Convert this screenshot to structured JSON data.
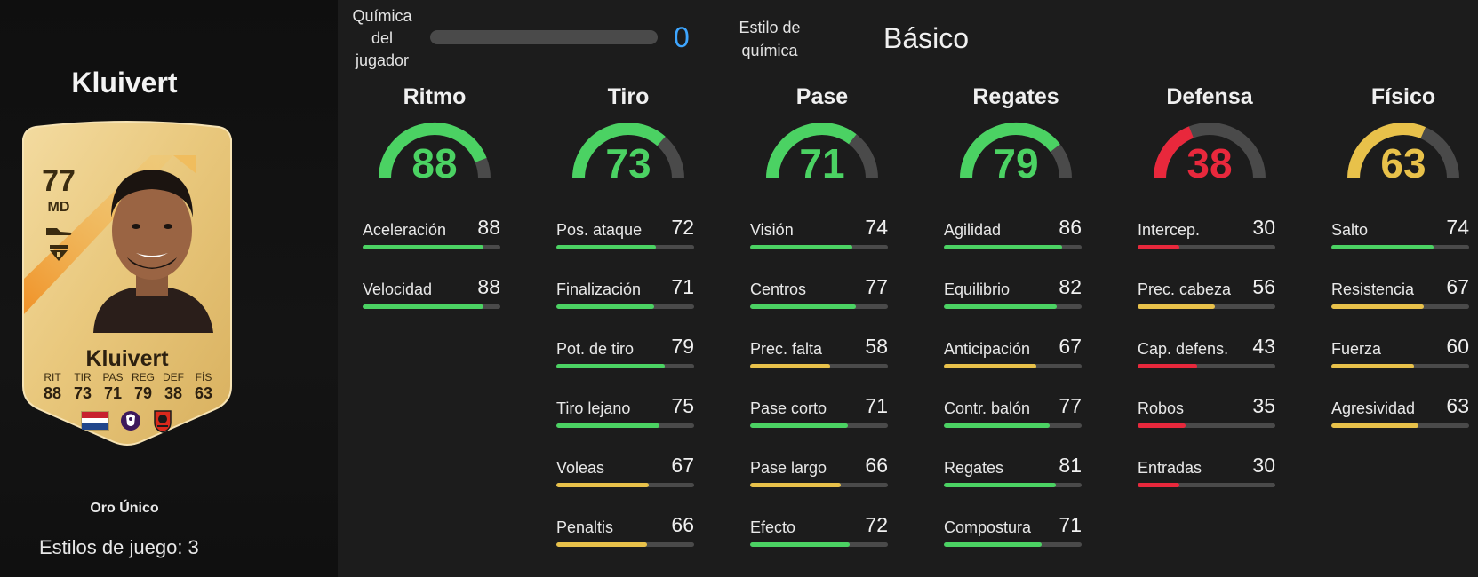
{
  "player": {
    "name": "Kluivert",
    "card_name": "Kluivert",
    "rating": "77",
    "position": "MD",
    "variant": "Oro Único",
    "playstyles": "Estilos de juego: 3",
    "card_stats": [
      {
        "label": "RIT",
        "value": "88"
      },
      {
        "label": "TIR",
        "value": "73"
      },
      {
        "label": "PAS",
        "value": "71"
      },
      {
        "label": "REG",
        "value": "79"
      },
      {
        "label": "DEF",
        "value": "38"
      },
      {
        "label": "FÍS",
        "value": "63"
      }
    ]
  },
  "header": {
    "chemistry_label": "Química\ndel\njugador",
    "chemistry_value": "0",
    "style_label": "Estilo de\nquímica",
    "style_value": "Básico"
  },
  "colors": {
    "green": "#4bd263",
    "yellow": "#e8c14a",
    "red": "#e8283c",
    "chem_blue": "#3ea6ff",
    "track": "#4a4a4a"
  },
  "categories": [
    {
      "title": "Ritmo",
      "value": 88,
      "attributes": [
        {
          "name": "Aceleración",
          "value": 88
        },
        {
          "name": "Velocidad",
          "value": 88
        }
      ]
    },
    {
      "title": "Tiro",
      "value": 73,
      "attributes": [
        {
          "name": "Pos. ataque",
          "value": 72
        },
        {
          "name": "Finalización",
          "value": 71
        },
        {
          "name": "Pot. de tiro",
          "value": 79
        },
        {
          "name": "Tiro lejano",
          "value": 75
        },
        {
          "name": "Voleas",
          "value": 67
        },
        {
          "name": "Penaltis",
          "value": 66
        }
      ]
    },
    {
      "title": "Pase",
      "value": 71,
      "attributes": [
        {
          "name": "Visión",
          "value": 74
        },
        {
          "name": "Centros",
          "value": 77
        },
        {
          "name": "Prec. falta",
          "value": 58
        },
        {
          "name": "Pase corto",
          "value": 71
        },
        {
          "name": "Pase largo",
          "value": 66
        },
        {
          "name": "Efecto",
          "value": 72
        }
      ]
    },
    {
      "title": "Regates",
      "value": 79,
      "attributes": [
        {
          "name": "Agilidad",
          "value": 86
        },
        {
          "name": "Equilibrio",
          "value": 82
        },
        {
          "name": "Anticipación",
          "value": 67
        },
        {
          "name": "Contr. balón",
          "value": 77
        },
        {
          "name": "Regates",
          "value": 81
        },
        {
          "name": "Compostura",
          "value": 71
        }
      ]
    },
    {
      "title": "Defensa",
      "value": 38,
      "attributes": [
        {
          "name": "Intercep.",
          "value": 30
        },
        {
          "name": "Prec. cabeza",
          "value": 56
        },
        {
          "name": "Cap. defens.",
          "value": 43
        },
        {
          "name": "Robos",
          "value": 35
        },
        {
          "name": "Entradas",
          "value": 30
        }
      ]
    },
    {
      "title": "Físico",
      "value": 63,
      "attributes": [
        {
          "name": "Salto",
          "value": 74
        },
        {
          "name": "Resistencia",
          "value": 67
        },
        {
          "name": "Fuerza",
          "value": 60
        },
        {
          "name": "Agresividad",
          "value": 63
        }
      ]
    }
  ]
}
